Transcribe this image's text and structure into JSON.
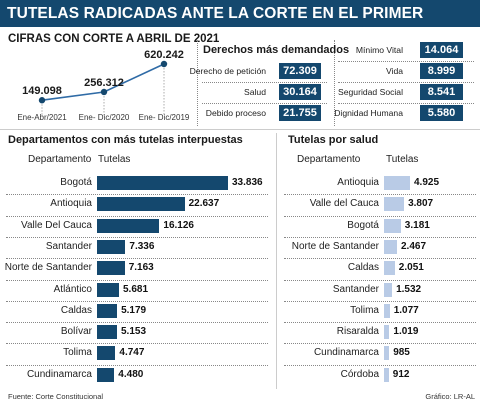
{
  "title": "TUTELAS RADICADAS ANTE LA CORTE EN EL PRIMER TRIMESTRE",
  "line_section_title": "CIFRAS CON CORTE A ABRIL DE 2021",
  "demanded_title": "Derechos más demandados",
  "demanded_left": [
    {
      "label": "Derecho de petición",
      "value": "72.309"
    },
    {
      "label": "Salud",
      "value": "30.164"
    },
    {
      "label": "Debido proceso",
      "value": "21.755"
    }
  ],
  "demanded_right": [
    {
      "label": "Mínimo Vital",
      "value": "14.064"
    },
    {
      "label": "Vida",
      "value": "8.999"
    },
    {
      "label": "Seguridad Social",
      "value": "8.541"
    },
    {
      "label": "Dignidad Humana",
      "value": "5.580"
    }
  ],
  "departments": {
    "title": "Departamentos con más tutelas interpuestas",
    "col_label": "Departamento",
    "col_value": "Tutelas"
  },
  "health": {
    "title": "Tutelas por salud",
    "col_label": "Departamento",
    "col_value": "Tutelas"
  },
  "footer": {
    "source": "Fuente: Corte Constitucional",
    "credit": "Gráfico: LR-AL"
  },
  "colors": {
    "primary": "#14486e",
    "light_bar": "#b9cbe6",
    "line": "#2f6ba6"
  },
  "chart_data": [
    {
      "type": "line",
      "categories": [
        "Ene-Abr/2021",
        "Ene- Dic/2020",
        "Ene- Dic/2019"
      ],
      "values": [
        149098,
        256312,
        620242
      ],
      "value_labels": [
        "149.098",
        "256.312",
        "620.242"
      ],
      "title": "CIFRAS CON CORTE A ABRIL DE 2021"
    },
    {
      "type": "bar",
      "orientation": "horizontal",
      "title": "Departamentos con más tutelas interpuestas",
      "categories": [
        "Bogotá",
        "Antioquia",
        "Valle Del Cauca",
        "Santander",
        "Norte de Santander",
        "Atlántico",
        "Caldas",
        "Bolívar",
        "Tolima",
        "Cundinamarca"
      ],
      "values": [
        33836,
        22637,
        16126,
        7336,
        7163,
        5681,
        5179,
        5153,
        4747,
        4480
      ],
      "value_labels": [
        "33.836",
        "22.637",
        "16.126",
        "7.336",
        "7.163",
        "5.681",
        "5.179",
        "5.153",
        "4.747",
        "4.480"
      ]
    },
    {
      "type": "bar",
      "orientation": "horizontal",
      "title": "Tutelas por salud",
      "categories": [
        "Antioquia",
        "Valle del Cauca",
        "Bogotá",
        "Norte de Santander",
        "Caldas",
        "Santander",
        "Tolima",
        "Risaralda",
        "Cundinamarca",
        "Córdoba"
      ],
      "values": [
        4925,
        3807,
        3181,
        2467,
        2051,
        1532,
        1077,
        1019,
        985,
        912
      ],
      "value_labels": [
        "4.925",
        "3.807",
        "3.181",
        "2.467",
        "2.051",
        "1.532",
        "1.077",
        "1.019",
        "985",
        "912"
      ]
    }
  ]
}
